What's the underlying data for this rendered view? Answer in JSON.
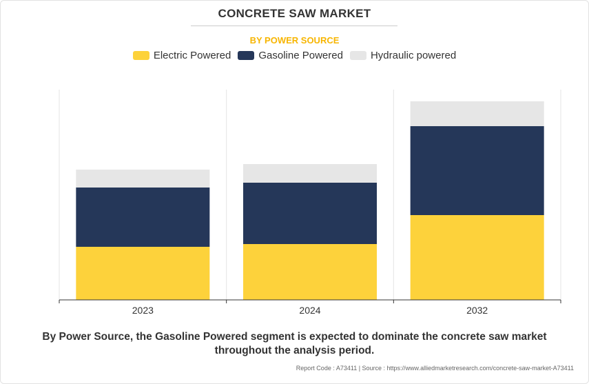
{
  "header": {
    "title": "CONCRETE SAW MARKET",
    "subtitle": "BY POWER SOURCE"
  },
  "legend": {
    "items": [
      {
        "label": "Electric Powered",
        "color": "#fdd23b",
        "icon": "legend-swatch"
      },
      {
        "label": "Gasoline Powered",
        "color": "#253759",
        "icon": "legend-swatch"
      },
      {
        "label": "Hydraulic powered",
        "color": "#e6e6e6",
        "icon": "legend-swatch"
      }
    ]
  },
  "chart_data": {
    "type": "bar",
    "stacked": true,
    "categories": [
      "2023",
      "2024",
      "2032"
    ],
    "series": [
      {
        "name": "Electric Powered",
        "color": "#fdd23b",
        "values": [
          77,
          81,
          123
        ]
      },
      {
        "name": "Gasoline Powered",
        "color": "#253759",
        "values": [
          86,
          89,
          129
        ]
      },
      {
        "name": "Hydraulic powered",
        "color": "#e6e6e6",
        "values": [
          26,
          27,
          36
        ]
      }
    ],
    "ylim": [
      0,
      305
    ],
    "grid": "vertical",
    "legend_position": "top"
  },
  "footer": {
    "caption": "By Power Source, the Gasoline Powered segment is expected to dominate the concrete saw market throughout the analysis period.",
    "source": "Report Code : A73411  |  Source : https://www.alliedmarketresearch.com/concrete-saw-market-A73411"
  }
}
